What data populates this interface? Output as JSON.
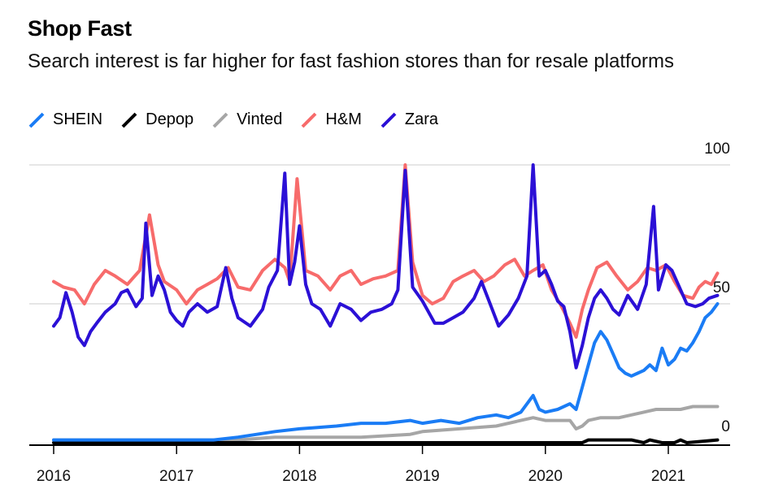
{
  "title": "Shop Fast",
  "subtitle": "Search interest is far higher for fast fashion stores than for resale platforms",
  "chart_data": {
    "type": "line",
    "y_ticks": [
      0,
      50,
      100
    ],
    "ylim": [
      0,
      100
    ],
    "x_ticks": [
      "2016",
      "2017",
      "2018",
      "2019",
      "2020",
      "2021"
    ],
    "xlim": [
      2016.0,
      2021.78
    ],
    "grid": "horizontal",
    "legend_position": "top-left",
    "series": [
      {
        "name": "SHEIN",
        "color": "#1a7cf5",
        "points": [
          [
            2016.0,
            1
          ],
          [
            2016.5,
            1
          ],
          [
            2016.9,
            1
          ],
          [
            2017.3,
            1
          ],
          [
            2017.5,
            2
          ],
          [
            2017.8,
            4
          ],
          [
            2018.0,
            5
          ],
          [
            2018.3,
            6
          ],
          [
            2018.5,
            7
          ],
          [
            2018.7,
            7
          ],
          [
            2018.9,
            8
          ],
          [
            2019.0,
            7
          ],
          [
            2019.15,
            8
          ],
          [
            2019.3,
            7
          ],
          [
            2019.45,
            9
          ],
          [
            2019.6,
            10
          ],
          [
            2019.7,
            9
          ],
          [
            2019.8,
            11
          ],
          [
            2019.9,
            17
          ],
          [
            2019.95,
            12
          ],
          [
            2020.0,
            11
          ],
          [
            2020.1,
            12
          ],
          [
            2020.2,
            14
          ],
          [
            2020.25,
            12
          ],
          [
            2020.3,
            20
          ],
          [
            2020.35,
            28
          ],
          [
            2020.4,
            36
          ],
          [
            2020.45,
            40
          ],
          [
            2020.5,
            37
          ],
          [
            2020.55,
            32
          ],
          [
            2020.6,
            27
          ],
          [
            2020.65,
            25
          ],
          [
            2020.7,
            24
          ],
          [
            2020.75,
            25
          ],
          [
            2020.8,
            26
          ],
          [
            2020.85,
            28
          ],
          [
            2020.9,
            26
          ],
          [
            2020.95,
            34
          ],
          [
            2021.0,
            28
          ],
          [
            2021.05,
            30
          ],
          [
            2021.1,
            34
          ],
          [
            2021.15,
            33
          ],
          [
            2021.2,
            36
          ],
          [
            2021.25,
            40
          ],
          [
            2021.3,
            45
          ],
          [
            2021.35,
            47
          ],
          [
            2021.4,
            50
          ]
        ]
      },
      {
        "name": "Depop",
        "color": "#000000",
        "points": [
          [
            2016.0,
            0
          ],
          [
            2017.0,
            0
          ],
          [
            2018.0,
            0
          ],
          [
            2019.0,
            0
          ],
          [
            2020.0,
            0
          ],
          [
            2020.3,
            0
          ],
          [
            2020.35,
            1
          ],
          [
            2020.5,
            1
          ],
          [
            2020.7,
            1
          ],
          [
            2020.8,
            0
          ],
          [
            2020.85,
            1
          ],
          [
            2020.95,
            0
          ],
          [
            2021.05,
            0
          ],
          [
            2021.1,
            1
          ],
          [
            2021.15,
            0
          ],
          [
            2021.4,
            1
          ]
        ]
      },
      {
        "name": "Vinted",
        "color": "#a6a6a6",
        "points": [
          [
            2016.0,
            1
          ],
          [
            2016.5,
            1
          ],
          [
            2017.0,
            1
          ],
          [
            2017.5,
            1
          ],
          [
            2017.8,
            2
          ],
          [
            2018.0,
            2
          ],
          [
            2018.3,
            2
          ],
          [
            2018.5,
            2
          ],
          [
            2018.9,
            3
          ],
          [
            2019.0,
            4
          ],
          [
            2019.3,
            5
          ],
          [
            2019.6,
            6
          ],
          [
            2019.8,
            8
          ],
          [
            2019.9,
            9
          ],
          [
            2020.0,
            8
          ],
          [
            2020.2,
            8
          ],
          [
            2020.25,
            5
          ],
          [
            2020.3,
            6
          ],
          [
            2020.35,
            8
          ],
          [
            2020.45,
            9
          ],
          [
            2020.6,
            9
          ],
          [
            2020.7,
            10
          ],
          [
            2020.8,
            11
          ],
          [
            2020.9,
            12
          ],
          [
            2021.0,
            12
          ],
          [
            2021.1,
            12
          ],
          [
            2021.2,
            13
          ],
          [
            2021.3,
            13
          ],
          [
            2021.4,
            13
          ]
        ]
      },
      {
        "name": "H&M",
        "color": "#f76b6b",
        "points": [
          [
            2016.0,
            58
          ],
          [
            2016.08,
            56
          ],
          [
            2016.17,
            55
          ],
          [
            2016.25,
            50
          ],
          [
            2016.33,
            57
          ],
          [
            2016.42,
            62
          ],
          [
            2016.5,
            60
          ],
          [
            2016.6,
            57
          ],
          [
            2016.7,
            62
          ],
          [
            2016.78,
            82
          ],
          [
            2016.85,
            64
          ],
          [
            2016.9,
            58
          ],
          [
            2017.0,
            55
          ],
          [
            2017.08,
            50
          ],
          [
            2017.17,
            55
          ],
          [
            2017.25,
            57
          ],
          [
            2017.33,
            59
          ],
          [
            2017.42,
            63
          ],
          [
            2017.5,
            56
          ],
          [
            2017.6,
            55
          ],
          [
            2017.7,
            62
          ],
          [
            2017.8,
            66
          ],
          [
            2017.88,
            63
          ],
          [
            2017.92,
            58
          ],
          [
            2017.98,
            95
          ],
          [
            2018.05,
            62
          ],
          [
            2018.15,
            60
          ],
          [
            2018.25,
            55
          ],
          [
            2018.33,
            60
          ],
          [
            2018.42,
            62
          ],
          [
            2018.5,
            57
          ],
          [
            2018.6,
            59
          ],
          [
            2018.7,
            60
          ],
          [
            2018.8,
            62
          ],
          [
            2018.86,
            100
          ],
          [
            2018.92,
            65
          ],
          [
            2019.0,
            53
          ],
          [
            2019.08,
            50
          ],
          [
            2019.17,
            52
          ],
          [
            2019.25,
            58
          ],
          [
            2019.33,
            60
          ],
          [
            2019.42,
            62
          ],
          [
            2019.5,
            58
          ],
          [
            2019.58,
            60
          ],
          [
            2019.67,
            64
          ],
          [
            2019.75,
            66
          ],
          [
            2019.83,
            60
          ],
          [
            2019.9,
            62
          ],
          [
            2019.98,
            64
          ],
          [
            2020.05,
            55
          ],
          [
            2020.12,
            50
          ],
          [
            2020.2,
            43
          ],
          [
            2020.25,
            38
          ],
          [
            2020.3,
            48
          ],
          [
            2020.35,
            55
          ],
          [
            2020.42,
            63
          ],
          [
            2020.5,
            65
          ],
          [
            2020.58,
            60
          ],
          [
            2020.67,
            55
          ],
          [
            2020.75,
            58
          ],
          [
            2020.83,
            63
          ],
          [
            2020.9,
            62
          ],
          [
            2020.98,
            64
          ],
          [
            2021.05,
            58
          ],
          [
            2021.12,
            53
          ],
          [
            2021.2,
            52
          ],
          [
            2021.25,
            56
          ],
          [
            2021.3,
            58
          ],
          [
            2021.35,
            57
          ],
          [
            2021.4,
            61
          ]
        ]
      },
      {
        "name": "Zara",
        "color": "#2b10d6",
        "points": [
          [
            2016.0,
            42
          ],
          [
            2016.05,
            45
          ],
          [
            2016.1,
            54
          ],
          [
            2016.15,
            47
          ],
          [
            2016.2,
            38
          ],
          [
            2016.25,
            35
          ],
          [
            2016.3,
            40
          ],
          [
            2016.35,
            43
          ],
          [
            2016.42,
            47
          ],
          [
            2016.5,
            50
          ],
          [
            2016.55,
            54
          ],
          [
            2016.6,
            55
          ],
          [
            2016.67,
            49
          ],
          [
            2016.72,
            52
          ],
          [
            2016.75,
            79
          ],
          [
            2016.8,
            53
          ],
          [
            2016.85,
            60
          ],
          [
            2016.9,
            55
          ],
          [
            2016.95,
            47
          ],
          [
            2017.0,
            44
          ],
          [
            2017.05,
            42
          ],
          [
            2017.1,
            47
          ],
          [
            2017.17,
            50
          ],
          [
            2017.25,
            47
          ],
          [
            2017.33,
            49
          ],
          [
            2017.4,
            63
          ],
          [
            2017.45,
            52
          ],
          [
            2017.5,
            45
          ],
          [
            2017.6,
            42
          ],
          [
            2017.7,
            48
          ],
          [
            2017.75,
            56
          ],
          [
            2017.82,
            62
          ],
          [
            2017.88,
            97
          ],
          [
            2017.92,
            57
          ],
          [
            2017.96,
            65
          ],
          [
            2018.0,
            78
          ],
          [
            2018.05,
            57
          ],
          [
            2018.1,
            50
          ],
          [
            2018.17,
            48
          ],
          [
            2018.25,
            42
          ],
          [
            2018.33,
            50
          ],
          [
            2018.42,
            48
          ],
          [
            2018.5,
            44
          ],
          [
            2018.58,
            47
          ],
          [
            2018.67,
            48
          ],
          [
            2018.75,
            50
          ],
          [
            2018.8,
            55
          ],
          [
            2018.86,
            98
          ],
          [
            2018.92,
            56
          ],
          [
            2019.0,
            51
          ],
          [
            2019.05,
            47
          ],
          [
            2019.1,
            43
          ],
          [
            2019.17,
            43
          ],
          [
            2019.25,
            45
          ],
          [
            2019.33,
            47
          ],
          [
            2019.42,
            52
          ],
          [
            2019.48,
            58
          ],
          [
            2019.55,
            50
          ],
          [
            2019.62,
            42
          ],
          [
            2019.7,
            46
          ],
          [
            2019.78,
            52
          ],
          [
            2019.85,
            60
          ],
          [
            2019.9,
            100
          ],
          [
            2019.95,
            60
          ],
          [
            2020.0,
            62
          ],
          [
            2020.05,
            57
          ],
          [
            2020.1,
            51
          ],
          [
            2020.15,
            49
          ],
          [
            2020.2,
            40
          ],
          [
            2020.25,
            27
          ],
          [
            2020.3,
            35
          ],
          [
            2020.35,
            45
          ],
          [
            2020.4,
            52
          ],
          [
            2020.45,
            55
          ],
          [
            2020.5,
            52
          ],
          [
            2020.55,
            48
          ],
          [
            2020.6,
            46
          ],
          [
            2020.67,
            53
          ],
          [
            2020.75,
            48
          ],
          [
            2020.82,
            57
          ],
          [
            2020.88,
            85
          ],
          [
            2020.92,
            55
          ],
          [
            2020.98,
            64
          ],
          [
            2021.03,
            62
          ],
          [
            2021.08,
            57
          ],
          [
            2021.15,
            50
          ],
          [
            2021.22,
            49
          ],
          [
            2021.28,
            50
          ],
          [
            2021.33,
            52
          ],
          [
            2021.4,
            53
          ]
        ]
      }
    ]
  }
}
